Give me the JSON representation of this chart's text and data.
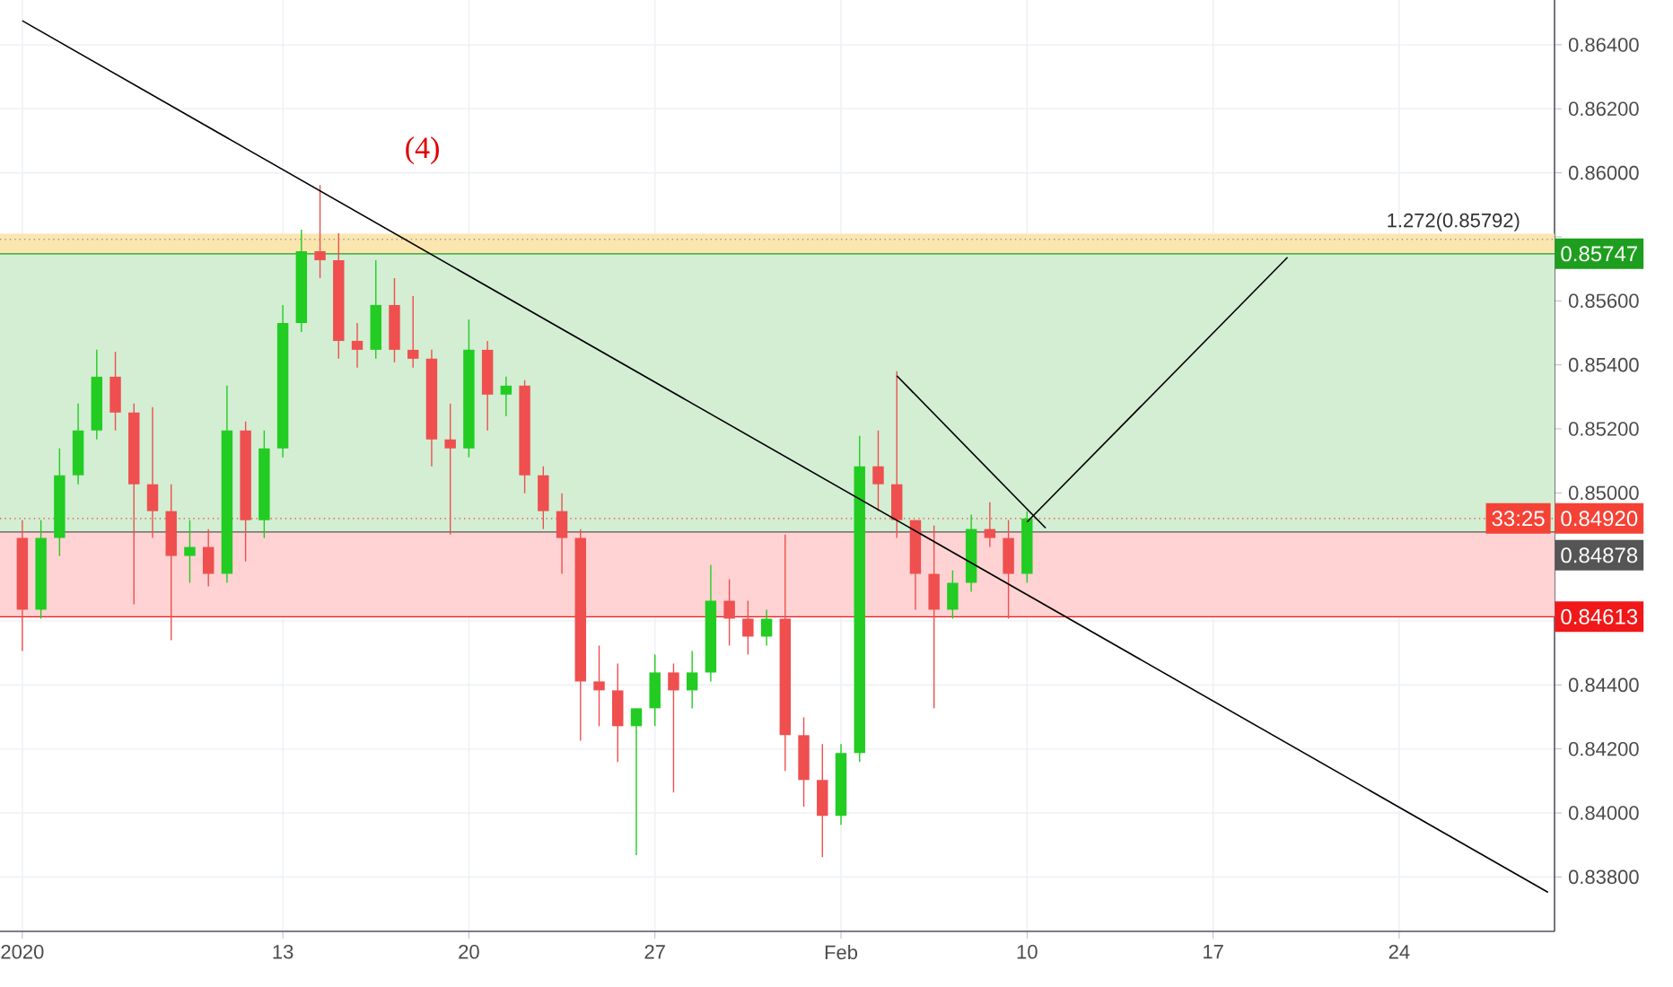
{
  "chart_data": {
    "type": "candlestick",
    "categories": [
      "2020",
      null,
      null,
      null,
      null,
      null,
      null,
      null,
      null,
      null,
      null,
      null,
      null,
      null,
      "13",
      null,
      null,
      null,
      null,
      null,
      null,
      null,
      null,
      null,
      "20",
      null,
      null,
      null,
      null,
      null,
      null,
      null,
      null,
      null,
      "27",
      null,
      null,
      null,
      null,
      null,
      null,
      null,
      null,
      null,
      "Feb",
      null,
      null,
      null,
      null,
      null,
      null,
      null,
      null,
      null,
      "10",
      null,
      null,
      null,
      null,
      null,
      null,
      null,
      null,
      null,
      "17",
      null,
      null,
      null,
      null,
      null,
      null,
      null,
      null,
      null,
      "24",
      null,
      null,
      null,
      null,
      null,
      null,
      null,
      null
    ],
    "ohlc": [
      [
        0.84859,
        0.84915,
        0.84506,
        0.84635
      ],
      [
        0.84635,
        0.84915,
        0.84607,
        0.84859
      ],
      [
        0.84859,
        0.85139,
        0.84803,
        0.85055
      ],
      [
        0.85055,
        0.85279,
        0.85027,
        0.85195
      ],
      [
        0.85195,
        0.85447,
        0.85167,
        0.85363
      ],
      [
        0.85363,
        0.85441,
        0.85195,
        0.85251
      ],
      [
        0.85251,
        0.85279,
        0.84652,
        0.85027
      ],
      [
        0.85027,
        0.85268,
        0.84859,
        0.84943
      ],
      [
        0.84943,
        0.85027,
        0.8454,
        0.84803
      ],
      [
        0.84803,
        0.84915,
        0.84719,
        0.84831
      ],
      [
        0.84831,
        0.84887,
        0.84708,
        0.84747
      ],
      [
        0.84747,
        0.85335,
        0.84719,
        0.85195
      ],
      [
        0.85195,
        0.85223,
        0.84786,
        0.84915
      ],
      [
        0.84915,
        0.85195,
        0.84859,
        0.85139
      ],
      [
        0.85139,
        0.85587,
        0.85111,
        0.85531
      ],
      [
        0.85531,
        0.85822,
        0.85503,
        0.85755
      ],
      [
        0.85755,
        0.85962,
        0.85671,
        0.85727
      ],
      [
        0.85727,
        0.85811,
        0.85419,
        0.85475
      ],
      [
        0.85475,
        0.85531,
        0.85391,
        0.85447
      ],
      [
        0.85447,
        0.85727,
        0.85419,
        0.85587
      ],
      [
        0.85587,
        0.85671,
        0.85408,
        0.85447
      ],
      [
        0.85447,
        0.85615,
        0.85391,
        0.85419
      ],
      [
        0.85419,
        0.85447,
        0.85083,
        0.85167
      ],
      [
        0.85167,
        0.85279,
        0.8487,
        0.85139
      ],
      [
        0.85139,
        0.85542,
        0.85111,
        0.85447
      ],
      [
        0.85447,
        0.85475,
        0.85195,
        0.85307
      ],
      [
        0.85307,
        0.85363,
        0.8524,
        0.85335
      ],
      [
        0.85335,
        0.85352,
        0.84999,
        0.85055
      ],
      [
        0.85055,
        0.85083,
        0.84887,
        0.84943
      ],
      [
        0.84943,
        0.84999,
        0.84747,
        0.84859
      ],
      [
        0.84859,
        0.84887,
        0.84226,
        0.84411
      ],
      [
        0.84411,
        0.84523,
        0.84271,
        0.84383
      ],
      [
        0.84383,
        0.84467,
        0.84159,
        0.84271
      ],
      [
        0.84271,
        0.84327,
        0.83868,
        0.84327
      ],
      [
        0.84327,
        0.84495,
        0.84271,
        0.84439
      ],
      [
        0.84439,
        0.84467,
        0.84064,
        0.84383
      ],
      [
        0.84383,
        0.84506,
        0.84327,
        0.84439
      ],
      [
        0.84439,
        0.84775,
        0.84411,
        0.84663
      ],
      [
        0.84663,
        0.8473,
        0.84523,
        0.84607
      ],
      [
        0.84607,
        0.84663,
        0.84495,
        0.84551
      ],
      [
        0.84551,
        0.84635,
        0.84523,
        0.84607
      ],
      [
        0.84607,
        0.8487,
        0.84131,
        0.84243
      ],
      [
        0.84243,
        0.84299,
        0.84019,
        0.84103
      ],
      [
        0.84103,
        0.84215,
        0.83862,
        0.83991
      ],
      [
        0.83991,
        0.84215,
        0.83963,
        0.84187
      ],
      [
        0.84187,
        0.85178,
        0.84159,
        0.85083
      ],
      [
        0.85083,
        0.85195,
        0.84943,
        0.85027
      ],
      [
        0.85027,
        0.8538,
        0.84859,
        0.84915
      ],
      [
        0.84915,
        0.84915,
        0.84635,
        0.84747
      ],
      [
        0.84747,
        0.84898,
        0.84327,
        0.84635
      ],
      [
        0.84635,
        0.84758,
        0.84607,
        0.84719
      ],
      [
        0.84719,
        0.84932,
        0.84691,
        0.84887
      ],
      [
        0.84887,
        0.84971,
        0.84831,
        0.84859
      ],
      [
        0.84859,
        0.84915,
        0.84607,
        0.84747
      ],
      [
        0.84747,
        0.84943,
        0.84719,
        0.8492
      ],
      null,
      null,
      null,
      null,
      null,
      null,
      null,
      null,
      null,
      null,
      null,
      null,
      null,
      null,
      null,
      null,
      null,
      null,
      null,
      null,
      null,
      null,
      null,
      null,
      null,
      null,
      null,
      null
    ],
    "series": [
      {
        "type": "line",
        "color": "#000000",
        "values": [
          0.86475,
          null,
          null,
          null,
          null,
          null,
          null,
          null,
          null,
          null,
          null,
          null,
          null,
          null,
          null,
          null,
          null,
          null,
          null,
          null,
          null,
          null,
          null,
          null,
          null,
          null,
          null,
          null,
          null,
          null,
          null,
          null,
          null,
          null,
          null,
          null,
          null,
          null,
          null,
          null,
          null,
          null,
          null,
          null,
          null,
          null,
          null,
          null,
          null,
          null,
          null,
          null,
          null,
          null,
          null,
          null,
          null,
          null,
          null,
          null,
          null,
          null,
          null,
          null,
          null,
          null,
          null,
          null,
          null,
          null,
          null,
          null,
          null,
          null,
          null,
          null,
          null,
          null,
          null,
          null,
          null,
          null,
          0.83752
        ]
      },
      {
        "type": "line",
        "color": "#000000",
        "values": [
          null,
          null,
          null,
          null,
          null,
          null,
          null,
          null,
          null,
          null,
          null,
          null,
          null,
          null,
          null,
          null,
          null,
          null,
          null,
          null,
          null,
          null,
          null,
          null,
          null,
          null,
          null,
          null,
          null,
          null,
          null,
          null,
          null,
          null,
          null,
          null,
          null,
          null,
          null,
          null,
          null,
          null,
          null,
          null,
          null,
          null,
          null,
          0.85366,
          null,
          null,
          null,
          null,
          null,
          null,
          null,
          0.8489,
          null,
          null,
          null,
          null,
          null,
          null,
          null,
          null,
          null,
          null,
          null,
          null,
          null,
          null,
          null,
          null,
          null,
          null,
          null,
          null,
          null,
          null,
          null,
          null,
          null,
          null,
          null
        ]
      },
      {
        "type": "line",
        "color": "#000000",
        "values": [
          null,
          null,
          null,
          null,
          null,
          null,
          null,
          null,
          null,
          null,
          null,
          null,
          null,
          null,
          null,
          null,
          null,
          null,
          null,
          null,
          null,
          null,
          null,
          null,
          null,
          null,
          null,
          null,
          null,
          null,
          null,
          null,
          null,
          null,
          null,
          null,
          null,
          null,
          null,
          null,
          null,
          null,
          null,
          null,
          null,
          null,
          null,
          null,
          null,
          null,
          null,
          null,
          null,
          null,
          0.84909,
          null,
          null,
          null,
          null,
          null,
          null,
          null,
          null,
          null,
          null,
          null,
          null,
          null,
          0.85736,
          null,
          null,
          null,
          null,
          null,
          null,
          null,
          null,
          null,
          null,
          null,
          null,
          null,
          null
        ]
      }
    ],
    "ylim": [
      0.8363,
      0.8654
    ],
    "yticks": [
      {
        "value": 0.838,
        "label": "0.83800"
      },
      {
        "value": 0.84,
        "label": "0.84000"
      },
      {
        "value": 0.842,
        "label": "0.84200"
      },
      {
        "value": 0.844,
        "label": "0.84400"
      },
      {
        "value": 0.846,
        "label": null
      },
      {
        "value": 0.848,
        "label": null
      },
      {
        "value": 0.85,
        "label": "0.85000"
      },
      {
        "value": 0.852,
        "label": "0.85200"
      },
      {
        "value": 0.854,
        "label": "0.85400"
      },
      {
        "value": 0.856,
        "label": "0.85600"
      },
      {
        "value": 0.858,
        "label": null
      },
      {
        "value": 0.86,
        "label": "0.86000"
      },
      {
        "value": 0.862,
        "label": "0.86200"
      },
      {
        "value": 0.864,
        "label": "0.86400"
      }
    ],
    "grid": true,
    "bands": [
      {
        "axis": "y",
        "from": 0.8574,
        "to": 0.8581,
        "color": "#fbe6b0"
      },
      {
        "axis": "y",
        "from": 0.84878,
        "to": 0.85747,
        "color": "#d3eed3"
      },
      {
        "axis": "y",
        "from": 0.84613,
        "to": 0.84878,
        "color": "#ffd3d3"
      }
    ],
    "ref_lines": [
      {
        "axis": "y",
        "value": 0.85792,
        "label": "1.272(0.85792)",
        "line_style": "dotted"
      },
      {
        "axis": "y",
        "value": 0.85747,
        "label": "0.85747",
        "color": "#1e9e1e"
      },
      {
        "axis": "y",
        "value": 0.8492,
        "label": "0.84920",
        "color": "#f44336",
        "line_style": "dotted"
      },
      {
        "axis": "y",
        "value": 0.84878,
        "label": "0.84878",
        "color": "#555555"
      },
      {
        "axis": "y",
        "value": 0.84613,
        "label": "0.84613",
        "color": "#f01818"
      }
    ],
    "annotations": [
      "(4)",
      "33:25"
    ]
  }
}
